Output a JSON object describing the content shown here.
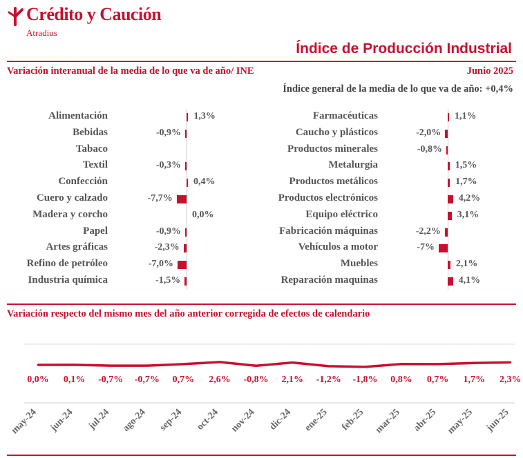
{
  "brand": {
    "name": "Crédito y Caución",
    "sub": "Atradius",
    "color": "#c8102e"
  },
  "title": "Índice de Producción Industrial",
  "section1": {
    "title": "Variación interanual de la media de lo que va de año/ INE",
    "date": "Junio 2025",
    "general": "Índice general de la media de lo que va de año: +0,4%"
  },
  "section2": {
    "title": "Variación respecto del mismo mes del año anterior corregida de efectos de calendario"
  },
  "chart_data": [
    {
      "type": "bar",
      "orientation": "horizontal",
      "categories": [
        "Alimentación",
        "Bebidas",
        "Tabaco",
        "Textil",
        "Confección",
        "Cuero y calzado",
        "Madera y corcho",
        "Papel",
        "Artes gráficas",
        "Refino de petróleo",
        "Industria química"
      ],
      "values": [
        1.3,
        -0.9,
        null,
        -0.3,
        0.4,
        -7.7,
        0.0,
        -0.9,
        -2.3,
        -7.0,
        -1.5
      ],
      "labels": [
        "1,3%",
        "-0,9%",
        "",
        "-0,3%",
        "0,4%",
        "-7,7%",
        "0,0%",
        "-0,9%",
        "-2,3%",
        "-7,0%",
        "-1,5%"
      ]
    },
    {
      "type": "bar",
      "orientation": "horizontal",
      "categories": [
        "Farmacéuticas",
        "Caucho y plásticos",
        "Productos minerales",
        "Metalurgia",
        "Productos metálicos",
        "Productos electrónicos",
        "Equipo eléctrico",
        "Fabricación máquinas",
        "Vehículos a motor",
        "Muebles",
        "Reparación maquinas"
      ],
      "values": [
        1.1,
        -2.0,
        -0.8,
        1.5,
        1.7,
        4.2,
        3.1,
        -2.2,
        -7.0,
        2.1,
        4.1
      ],
      "labels": [
        "1,1%",
        "-2,0%",
        "-0,8%",
        "1,5%",
        "1,7%",
        "4,2%",
        "3,1%",
        "-2,2%",
        "-7%",
        "2,1%",
        "4,1%"
      ]
    },
    {
      "type": "line",
      "x": [
        "may-24",
        "jun-24",
        "jul-24",
        "ago-24",
        "sep-24",
        "oct-24",
        "nov-24",
        "dic-24",
        "ene-25",
        "feb-25",
        "mar-25",
        "abr-25",
        "may-25",
        "jun-25"
      ],
      "values": [
        0.0,
        0.1,
        -0.7,
        -0.7,
        0.7,
        2.6,
        -0.8,
        2.1,
        -1.2,
        -1.8,
        0.8,
        0.7,
        1.7,
        2.3
      ],
      "labels": [
        "0,0%",
        "0,1%",
        "-0,7%",
        "-0,7%",
        "0,7%",
        "2,6%",
        "-0,8%",
        "2,1%",
        "-1,2%",
        "-1,8%",
        "0,8%",
        "0,7%",
        "1,7%",
        "2,3%"
      ],
      "grid": true
    }
  ]
}
